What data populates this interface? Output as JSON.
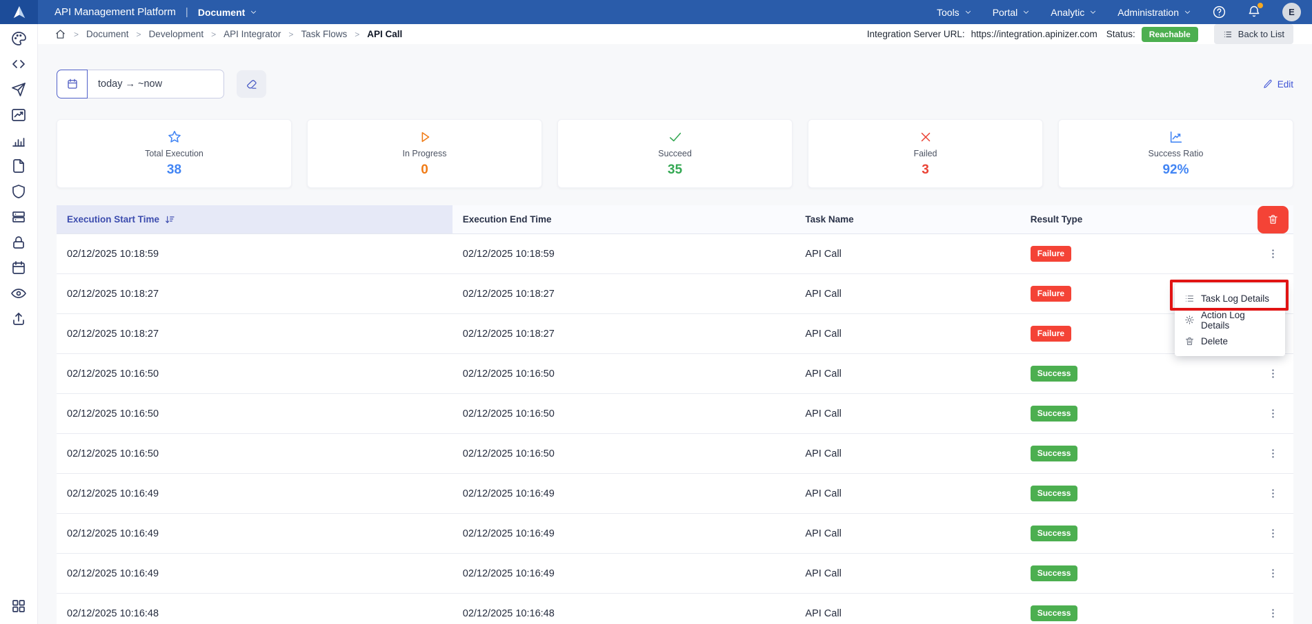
{
  "navbar": {
    "brand": "API Management Platform",
    "divider": "|",
    "context_label": "Document",
    "menus": [
      {
        "label": "Tools"
      },
      {
        "label": "Portal"
      },
      {
        "label": "Analytic"
      },
      {
        "label": "Administration"
      }
    ],
    "avatar_initial": "E"
  },
  "sidebar": {
    "items": [
      "palette-icon",
      "code-icon",
      "send-icon",
      "line-chart-icon",
      "bar-chart-icon",
      "document-icon",
      "shield-icon",
      "server-icon",
      "lock-icon",
      "calendar-icon",
      "eye-icon",
      "upload-icon"
    ],
    "bottom_item": "grid-icon"
  },
  "breadcrumb": {
    "separator": ">",
    "links": [
      "Document",
      "Development",
      "API Integrator",
      "Task Flows"
    ],
    "current": "API Call"
  },
  "server_info": {
    "url_label": "Integration Server URL:",
    "url": "https://integration.apinizer.com",
    "status_label": "Status:",
    "status_value": "Reachable",
    "status_color": "#4caf50",
    "back_button_label": "Back to List"
  },
  "toolbar": {
    "date_range_value": "today → ~now",
    "edit_label": "Edit"
  },
  "stats": [
    {
      "icon": "star-icon",
      "label": "Total Execution",
      "value": "38",
      "color": "#4285f4"
    },
    {
      "icon": "play-icon",
      "label": "In Progress",
      "value": "0",
      "color": "#f07b16"
    },
    {
      "icon": "check-icon",
      "label": "Succeed",
      "value": "35",
      "color": "#34a853"
    },
    {
      "icon": "x-icon",
      "label": "Failed",
      "value": "3",
      "color": "#ea4335"
    },
    {
      "icon": "trend-icon",
      "label": "Success Ratio",
      "value": "92%",
      "color": "#4285f4"
    }
  ],
  "table": {
    "columns": [
      {
        "label": "Execution Start Time",
        "sorted": true
      },
      {
        "label": "Execution End Time"
      },
      {
        "label": "Task Name"
      },
      {
        "label": "Result Type"
      }
    ],
    "result_colors": {
      "Success": "#4caf50",
      "Failure": "#f44336"
    },
    "rows": [
      {
        "start": "02/12/2025 10:18:59",
        "end": "02/12/2025 10:18:59",
        "task": "API Call",
        "result": "Failure"
      },
      {
        "start": "02/12/2025 10:18:27",
        "end": "02/12/2025 10:18:27",
        "task": "API Call",
        "result": "Failure"
      },
      {
        "start": "02/12/2025 10:18:27",
        "end": "02/12/2025 10:18:27",
        "task": "API Call",
        "result": "Failure"
      },
      {
        "start": "02/12/2025 10:16:50",
        "end": "02/12/2025 10:16:50",
        "task": "API Call",
        "result": "Success"
      },
      {
        "start": "02/12/2025 10:16:50",
        "end": "02/12/2025 10:16:50",
        "task": "API Call",
        "result": "Success"
      },
      {
        "start": "02/12/2025 10:16:50",
        "end": "02/12/2025 10:16:50",
        "task": "API Call",
        "result": "Success"
      },
      {
        "start": "02/12/2025 10:16:49",
        "end": "02/12/2025 10:16:49",
        "task": "API Call",
        "result": "Success"
      },
      {
        "start": "02/12/2025 10:16:49",
        "end": "02/12/2025 10:16:49",
        "task": "API Call",
        "result": "Success"
      },
      {
        "start": "02/12/2025 10:16:49",
        "end": "02/12/2025 10:16:49",
        "task": "API Call",
        "result": "Success"
      },
      {
        "start": "02/12/2025 10:16:48",
        "end": "02/12/2025 10:16:48",
        "task": "API Call",
        "result": "Success"
      }
    ]
  },
  "context_menu": {
    "items": [
      {
        "icon": "list-icon",
        "label": "Task Log Details",
        "highlighted": true
      },
      {
        "icon": "gear-icon",
        "label": "Action Log Details"
      },
      {
        "icon": "trash-icon",
        "label": "Delete"
      }
    ]
  }
}
